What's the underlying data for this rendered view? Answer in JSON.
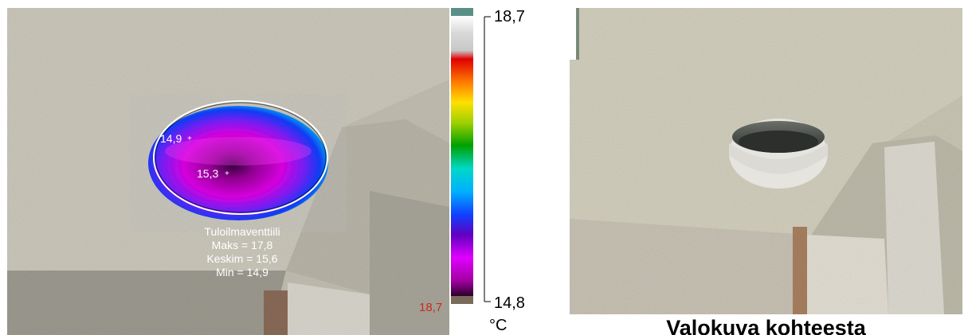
{
  "thermal": {
    "spot_1": "14,9",
    "spot_2": "15,3",
    "roi": {
      "name": "Tuloilmaventtiili",
      "max": "Maks = 17,8",
      "avg": "Keskim = 15,6",
      "min": "Min = 14,9"
    },
    "corner_value": "18,7"
  },
  "scale": {
    "max": "18,7",
    "min": "14,8",
    "unit": "°C",
    "palette": [
      "#ffffff",
      "#d4d4d4",
      "#c0c0c0",
      "#e00000",
      "#ff7a00",
      "#ffe000",
      "#a0d000",
      "#00a000",
      "#00d8c8",
      "#00b0ff",
      "#1040ff",
      "#6000c0",
      "#e000ff",
      "#b000b0",
      "#400040",
      "#000000"
    ]
  },
  "photo": {
    "caption": "Valokuva kohteesta"
  }
}
